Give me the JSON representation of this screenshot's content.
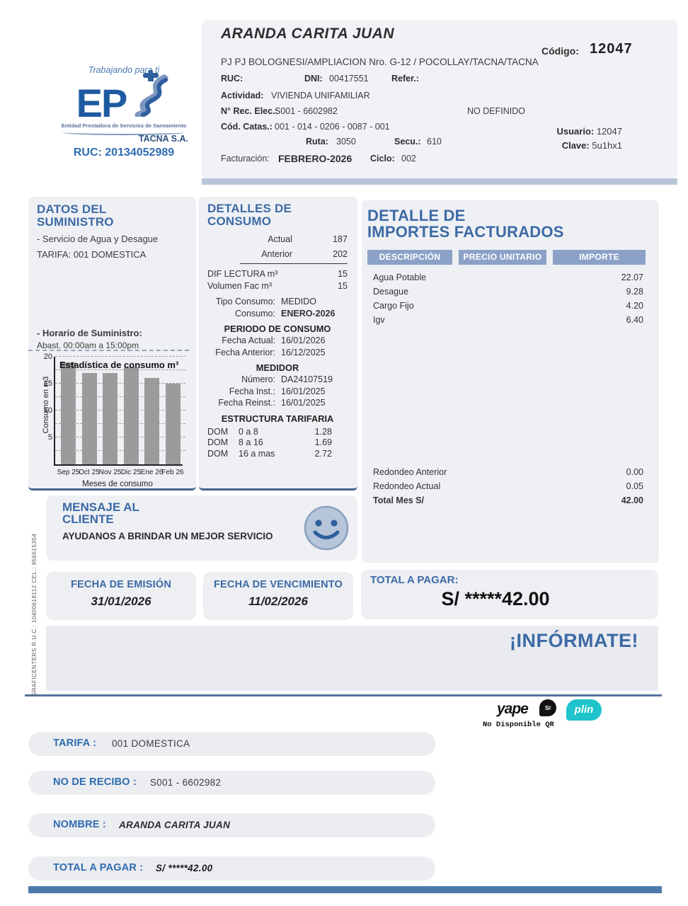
{
  "logo": {
    "tagline": "Trabajando para ti",
    "brand": "EP",
    "subtitle": "Entidad Prestadora de Servicios de Saneamiento",
    "company": "TACNA S.A.",
    "ruc": "RUC: 20134052989"
  },
  "header": {
    "name": "ARANDA CARITA JUAN",
    "codigo_label": "Código:",
    "codigo": "12047",
    "address": "PJ PJ BOLOGNESI/AMPLIACION Nro. G-12 / POCOLLAY/TACNA/TACNA",
    "ruc_label": "RUC:",
    "dni_label": "DNI:",
    "dni": "00417551",
    "refer_label": "Refer.:",
    "actividad_label": "Actividad:",
    "actividad": "VIVIENDA UNIFAMILIAR",
    "rec_label": "N° Rec. Elec.:",
    "rec": "S001 - 6602982",
    "no_definido": "NO DEFINIDO",
    "catas_label": "Cód. Catas.:",
    "catas": "001 - 014 - 0206 - 0087 - 001",
    "ruta_label": "Ruta:",
    "ruta": "3050",
    "secu_label": "Secu.:",
    "secu": "610",
    "usuario_label": "Usuario:",
    "usuario": "12047",
    "clave_label": "Clave:",
    "clave": "5u1hx1",
    "fact_label": "Facturación:",
    "fact": "FEBRERO-2026",
    "ciclo_label": "Ciclo:",
    "ciclo": "002"
  },
  "suministro": {
    "title1": "DATOS DEL",
    "title2": "SUMINISTRO",
    "servicio": "- Servicio de Agua y Desague",
    "tarifa": "TARIFA: 001 DOMESTICA",
    "horario_label": "- Horario de Suministro:",
    "horario": "Abast. 00:00am a 15:00pm"
  },
  "consumo": {
    "title1": "DETALLES DE",
    "title2": "CONSUMO",
    "actual_label": "Actual",
    "actual": "187",
    "anterior_label": "Anterior",
    "anterior": "202",
    "dif_label": "DIF LECTURA m³",
    "dif": "15",
    "vol_label": "Volumen Fac m³",
    "vol": "15",
    "tipo_label": "Tipo Consumo:",
    "tipo": "MEDIDO",
    "consumo_label": "Consumo:",
    "consumo_mes": "ENERO-2026",
    "periodo_title": "PERIODO DE CONSUMO",
    "fecha_actual_label": "Fecha Actual:",
    "fecha_actual": "16/01/2026",
    "fecha_anterior_label": "Fecha Anterior:",
    "fecha_anterior": "16/12/2025",
    "medidor_title": "MEDIDOR",
    "numero_label": "Número:",
    "numero": "DA24107519",
    "inst_label": "Fecha Inst.:",
    "inst": "16/01/2025",
    "reinst_label": "Fecha Reinst.:",
    "reinst": "16/01/2025",
    "estructura_title": "ESTRUCTURA TARIFARIA",
    "tarifas": [
      {
        "cat": "DOM",
        "rango": "0 a 8",
        "precio": "1.28"
      },
      {
        "cat": "DOM",
        "rango": "8 a 16",
        "precio": "1.69"
      },
      {
        "cat": "DOM",
        "rango": "16 a mas",
        "precio": "2.72"
      }
    ]
  },
  "importes": {
    "title1": "DETALLE DE",
    "title2": "IMPORTES FACTURADOS",
    "headers": [
      "DESCRIPCIÓN",
      "PRECIO UNITARIO",
      "IMPORTE"
    ],
    "rows": [
      {
        "desc": "Agua Potable",
        "precio": "",
        "importe": "22.07"
      },
      {
        "desc": "Desague",
        "precio": "",
        "importe": "9.28"
      },
      {
        "desc": "Cargo Fijo",
        "precio": "",
        "importe": "4.20"
      },
      {
        "desc": "Igv",
        "precio": "",
        "importe": "6.40"
      }
    ],
    "redondeo_anterior_label": "Redondeo Anterior",
    "redondeo_anterior": "0.00",
    "redondeo_actual_label": "Redondeo Actual",
    "redondeo_actual": "0.05",
    "total_label": "Total Mes S/",
    "total": "42.00"
  },
  "mensaje": {
    "title1": "MENSAJE AL",
    "title2": "CLIENTE",
    "text": "AYUDANOS A BRINDAR UN MEJOR SERVICIO"
  },
  "fechas": {
    "emision_label": "FECHA DE EMISIÓN",
    "emision": "31/01/2026",
    "venc_label": "FECHA DE VENCIMIENTO",
    "venc": "11/02/2026"
  },
  "total_pagar": {
    "label": "TOTAL A PAGAR:",
    "value": "S/ *****42.00"
  },
  "informate": "¡INFÓRMATE!",
  "payments": {
    "yape": "yape",
    "yape_bubble": "S/",
    "plin": "plin",
    "qr_note": "No Disponible QR"
  },
  "footer_rows": [
    {
      "label": "TARIFA :",
      "value": "001 DOMESTICA"
    },
    {
      "label": "NO DE RECIBO :",
      "value": "S001 - 6602982"
    },
    {
      "label": "NOMBRE :",
      "value": "ARANDA CARITA JUAN"
    },
    {
      "label": "TOTAL A PAGAR :",
      "value": "S/ *****42.00"
    }
  ],
  "side_text": "GRAFICENTERS  R.U.C.: 10400618112 CEL.: 956615354",
  "colors": {
    "title_blue": "#3d6aa5",
    "pill_blue": "#8ca1c7",
    "band_blue": "#b8c5d9",
    "bar_gray": "#9b9b9b",
    "plin_teal": "#1fc4cb"
  },
  "chart_data": {
    "type": "bar",
    "title": "Estadística de consumo m³",
    "categories": [
      "Sep 25",
      "Oct 25",
      "Nov 25",
      "Dic 25",
      "Ene 26",
      "Feb 26"
    ],
    "values": [
      19,
      17,
      17,
      18,
      16,
      15
    ],
    "xlabel": "Meses de consumo",
    "ylabel": "Consumo en m3",
    "ylim": [
      0,
      20
    ],
    "yticks": [
      5,
      10,
      15,
      20
    ],
    "grid": "dashed",
    "legend": "none",
    "bar_color": "#9b9b9b"
  }
}
